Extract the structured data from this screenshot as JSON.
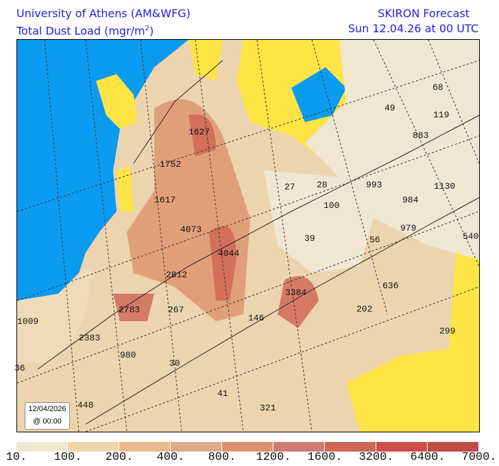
{
  "header": {
    "org": "University of Athens (AM&WFG)",
    "variable": "Total Dust Load (mgr/m",
    "unit_exp": "2",
    "variable_close": ")",
    "model": "SKIRON Forecast",
    "valid": "Sun 12.04.26 at 00 UTC"
  },
  "colors": {
    "ocean": "#0a9bf0",
    "no_dust": "#fde441",
    "background": "#f1e6d2"
  },
  "legend": {
    "colors": [
      "#f1e6d2",
      "#edd6ac",
      "#ebbb8e",
      "#ddab88",
      "#df916b",
      "#cf7d72",
      "#d06757",
      "#cf4e4d",
      "#c14c46"
    ],
    "labels": [
      "10.",
      "100.",
      "200.",
      "400.",
      "800.",
      "1200.",
      "1600.",
      "3200.",
      "6400.",
      "7000."
    ]
  },
  "tooltip": {
    "date": "12/04/2026",
    "time": "@ 00:00"
  },
  "values": [
    "68",
    "49",
    "119",
    "883",
    "1627",
    "1752",
    "27",
    "28",
    "993",
    "1130",
    "1617",
    "100",
    "984",
    "4073",
    "979",
    "39",
    "56",
    "540",
    "4044",
    "2812",
    "636",
    "3384",
    "2783",
    "267",
    "202",
    "1009",
    "146",
    "299",
    "2383",
    "980",
    "30",
    "36",
    "41",
    "448",
    "321"
  ]
}
